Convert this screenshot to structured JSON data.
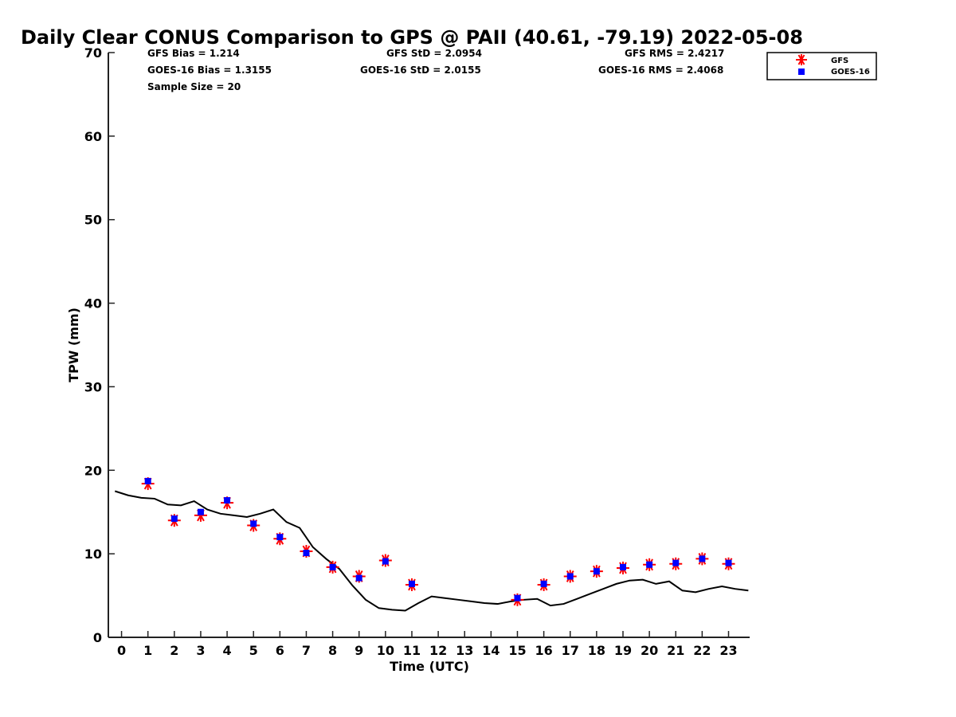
{
  "chart_data": {
    "type": "scatter",
    "title": "Daily Clear CONUS Comparison to GPS @ PAII (40.61, -79.19) 2022-05-08",
    "xlabel": "Time (UTC)",
    "ylabel": "TPW (mm)",
    "xlim": [
      -0.5,
      23.8
    ],
    "ylim": [
      0,
      70
    ],
    "xticks": [
      "0",
      "1",
      "2",
      "3",
      "4",
      "5",
      "6",
      "7",
      "8",
      "9",
      "10",
      "11",
      "12",
      "13",
      "14",
      "15",
      "16",
      "17",
      "18",
      "19",
      "20",
      "21",
      "22",
      "23"
    ],
    "yticks": [
      "0",
      "10",
      "20",
      "30",
      "40",
      "50",
      "60",
      "70"
    ],
    "grid": false,
    "legend_position": "top-right",
    "stats": [
      "GFS Bias = 1.214",
      "GOES-16 Bias = 1.3155",
      "Sample Size = 20",
      "GFS StD = 2.0954",
      "GOES-16 StD = 2.0155",
      "GFS RMS = 2.4217",
      "GOES-16 RMS = 2.4068"
    ],
    "series": [
      {
        "name": "GFS",
        "marker": "asterisk",
        "color": "#ff0000",
        "x": [
          1,
          2,
          3,
          4,
          5,
          6,
          7,
          8,
          9,
          10,
          11,
          15,
          16,
          17,
          18,
          19,
          20,
          21,
          22,
          23
        ],
        "y": [
          18.4,
          14.0,
          14.6,
          16.1,
          13.4,
          11.8,
          10.3,
          8.4,
          7.3,
          9.2,
          6.3,
          4.5,
          6.3,
          7.3,
          7.9,
          8.3,
          8.7,
          8.8,
          9.4,
          8.8
        ]
      },
      {
        "name": "GOES-16",
        "marker": "square",
        "color": "#0000ff",
        "x": [
          1,
          2,
          3,
          4,
          5,
          6,
          7,
          8,
          9,
          10,
          11,
          15,
          16,
          17,
          18,
          19,
          20,
          21,
          22,
          23
        ],
        "y": [
          18.7,
          14.2,
          15.0,
          16.4,
          13.6,
          12.0,
          10.1,
          8.4,
          7.1,
          9.1,
          6.4,
          4.7,
          6.4,
          7.3,
          7.9,
          8.4,
          8.7,
          8.9,
          9.4,
          8.9
        ]
      },
      {
        "marker": "line",
        "color": "#000000",
        "x": [
          -0.25,
          0.25,
          0.75,
          1.25,
          1.75,
          2.25,
          2.75,
          3.25,
          3.75,
          4.25,
          4.75,
          5.25,
          5.75,
          6.25,
          6.75,
          7.25,
          7.75,
          8.25,
          8.75,
          9.25,
          9.75,
          10.25,
          10.75,
          11.25,
          11.75,
          12.25,
          12.75,
          13.25,
          13.75,
          14.25,
          14.75,
          15.25,
          15.75,
          16.25,
          16.75,
          17.25,
          17.75,
          18.25,
          18.75,
          19.25,
          19.75,
          20.25,
          20.75,
          21.25,
          21.75,
          22.25,
          22.75,
          23.25,
          23.75
        ],
        "y": [
          17.5,
          17.0,
          16.7,
          16.6,
          15.9,
          15.8,
          16.3,
          15.3,
          14.8,
          14.6,
          14.4,
          14.8,
          15.3,
          13.8,
          13.1,
          10.8,
          9.4,
          8.2,
          6.2,
          4.5,
          3.5,
          3.3,
          3.2,
          4.1,
          4.9,
          4.7,
          4.5,
          4.3,
          4.1,
          4.0,
          4.3,
          4.5,
          4.6,
          3.8,
          4.0,
          4.6,
          5.2,
          5.8,
          6.4,
          6.8,
          6.9,
          6.4,
          6.7,
          5.6,
          5.4,
          5.8,
          6.1,
          5.8,
          5.6
        ]
      }
    ]
  }
}
